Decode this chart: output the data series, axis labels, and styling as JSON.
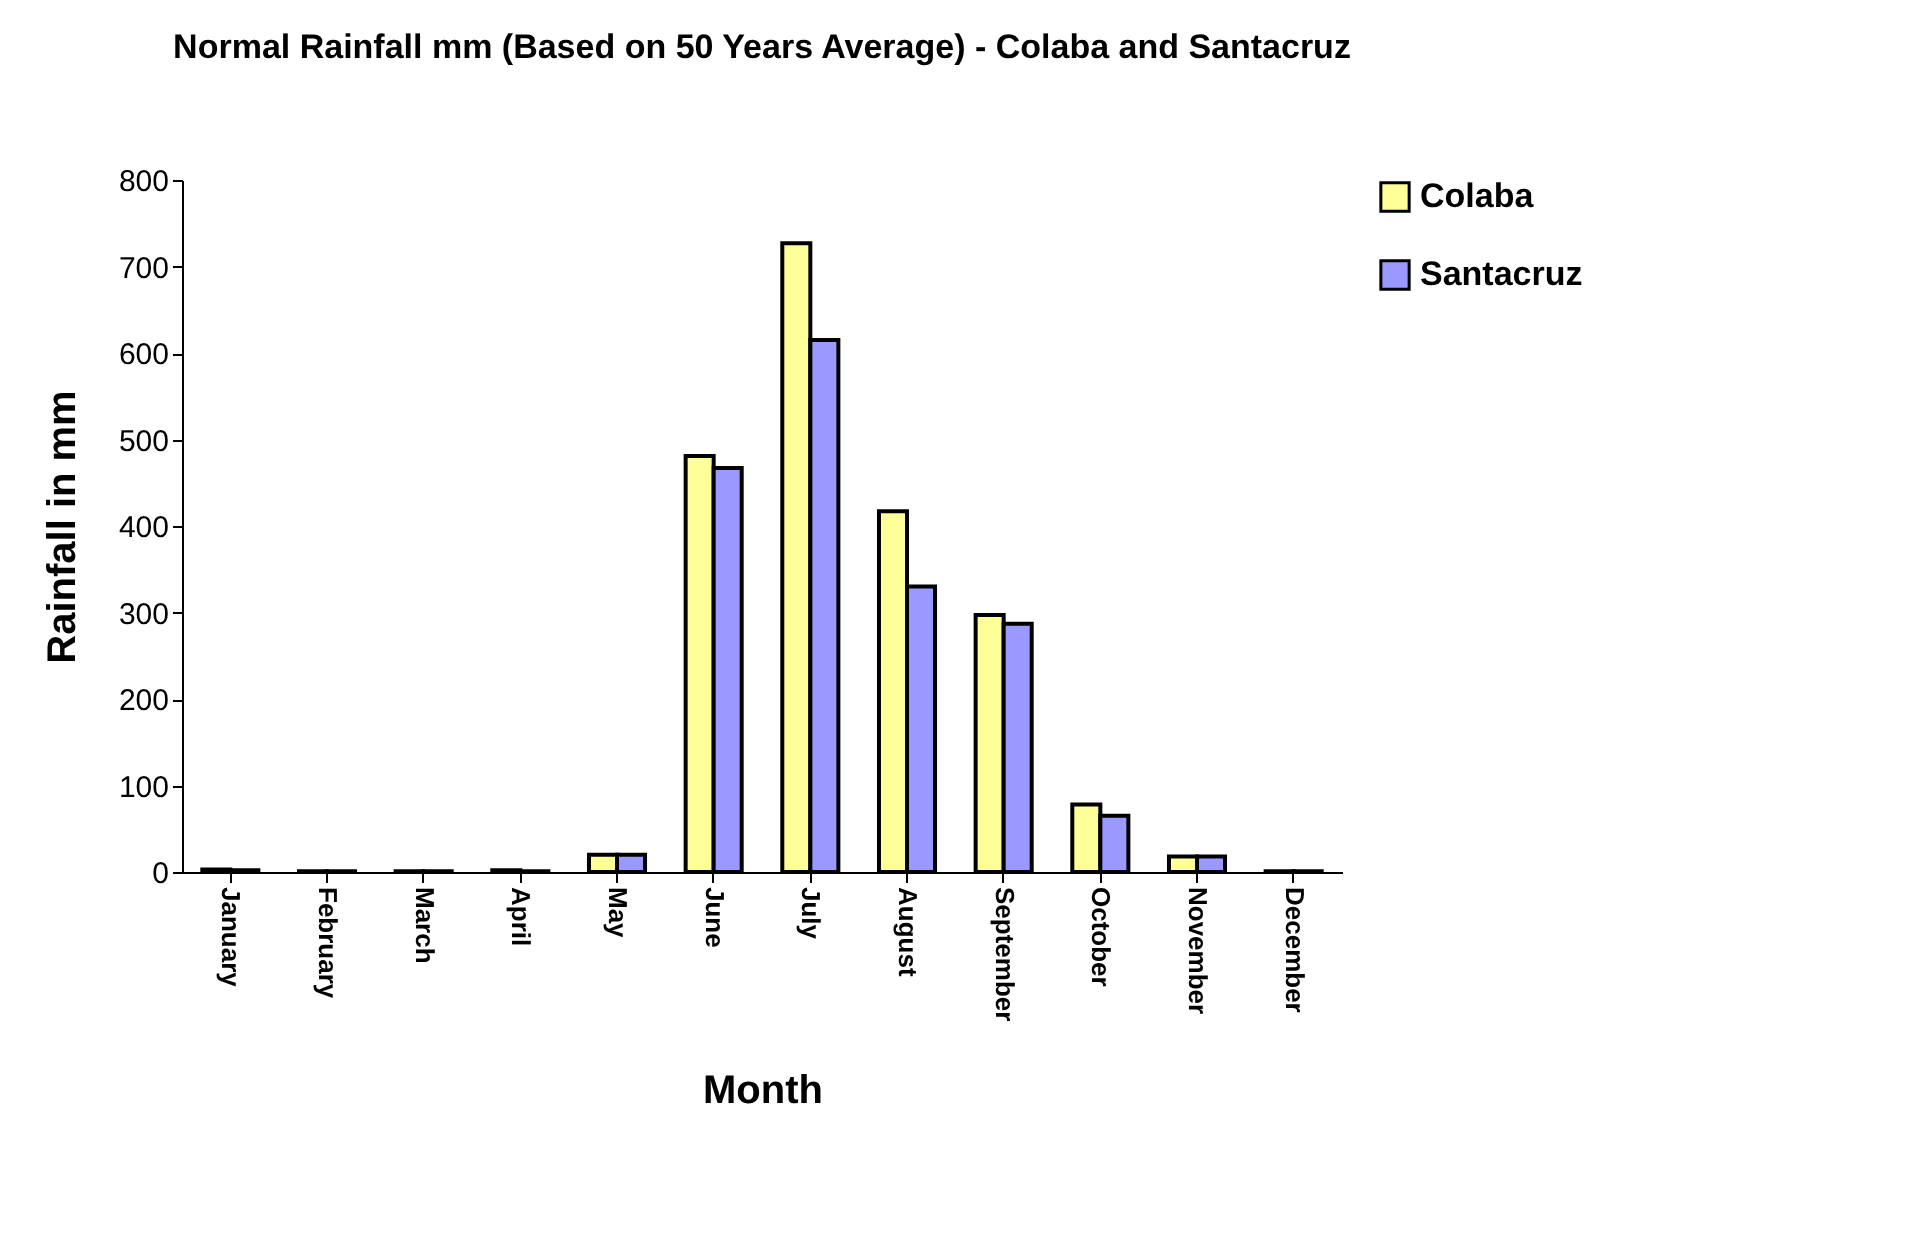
{
  "chart_data": {
    "type": "bar",
    "title": "Normal Rainfall mm (Based on 50 Years Average) - Colaba and Santacruz",
    "xlabel": "Month",
    "ylabel": "Rainfall in mm",
    "categories": [
      "January",
      "February",
      "March",
      "April",
      "May",
      "June",
      "July",
      "August",
      "September",
      "October",
      "November",
      "December"
    ],
    "series": [
      {
        "name": "Colaba",
        "color": "#ffff99",
        "values": [
          3,
          1,
          1,
          2,
          20,
          481,
          727,
          417,
          297,
          78,
          18,
          1
        ]
      },
      {
        "name": "Santacruz",
        "color": "#9999ff",
        "values": [
          2,
          1,
          1,
          1,
          20,
          467,
          615,
          330,
          287,
          65,
          18,
          1
        ]
      }
    ],
    "ylim": [
      0,
      800
    ],
    "yticks": [
      0,
      100,
      200,
      300,
      400,
      500,
      600,
      700,
      800
    ],
    "grid": false,
    "legend": "right"
  }
}
